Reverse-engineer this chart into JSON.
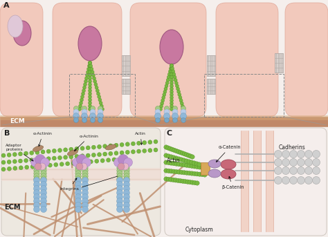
{
  "bg_color": "#f5efec",
  "cell_fill": "#f2c9bc",
  "cell_edge": "#e0a898",
  "ecm_color": "#c08868",
  "ecm_top": "#d4a878",
  "actin_green": "#78b840",
  "actin_edge": "#4a8820",
  "nucleus_fill": "#c878a0",
  "nucleus_edge": "#a05880",
  "nucleus_fill2": "#e0c8d8",
  "nucleus_edge2": "#c0a8b8",
  "integrin_blue": "#90b8d8",
  "integrin_blue_edge": "#6898b8",
  "integrin_green": "#a8cc88",
  "integrin_green_edge": "#689848",
  "adaptor_purple": "#c8a0d8",
  "adaptor_purple2": "#b888c8",
  "adaptor_pink": "#e8b8c8",
  "adaptor_pink2": "#d898a8",
  "alpha_actinin_brown": "#b08868",
  "alpha_actinin_edge": "#806040",
  "fiber_brown": "#c09070",
  "fiber_brown2": "#a87858",
  "cadherin_gray": "#d0d0d0",
  "cadherin_edge": "#a8a8a8",
  "beta_catenin_red": "#c86878",
  "beta_catenin_edge": "#a04858",
  "alpha_catenin_purple": "#b898c8",
  "alpha_catenin_edge": "#887098",
  "orange_linker": "#d8a858",
  "orange_linker_edge": "#b07830",
  "crosshatch_fill": "#d8d0cc",
  "crosshatch_line": "#b0a8a4",
  "text_color": "#222222",
  "panel_b_bg": "#ede8e0",
  "panel_c_bg": "#f5eeec",
  "membrane_band": "#f0ddd5",
  "label_A": "A",
  "label_B": "B",
  "label_C": "C",
  "ecm_label": "ECM",
  "cytoplasm_label": "Cytoplasm",
  "cadherins_label": "Cadherins",
  "actin_label": "Actin",
  "alpha_catenin_label": "α-Catenin",
  "beta_catenin_label": "β-Catenin",
  "adaptor_label": "Adaptor\nproteins",
  "alpha_actinin_label": "α-Actinin",
  "integrins_label": "Integrins"
}
